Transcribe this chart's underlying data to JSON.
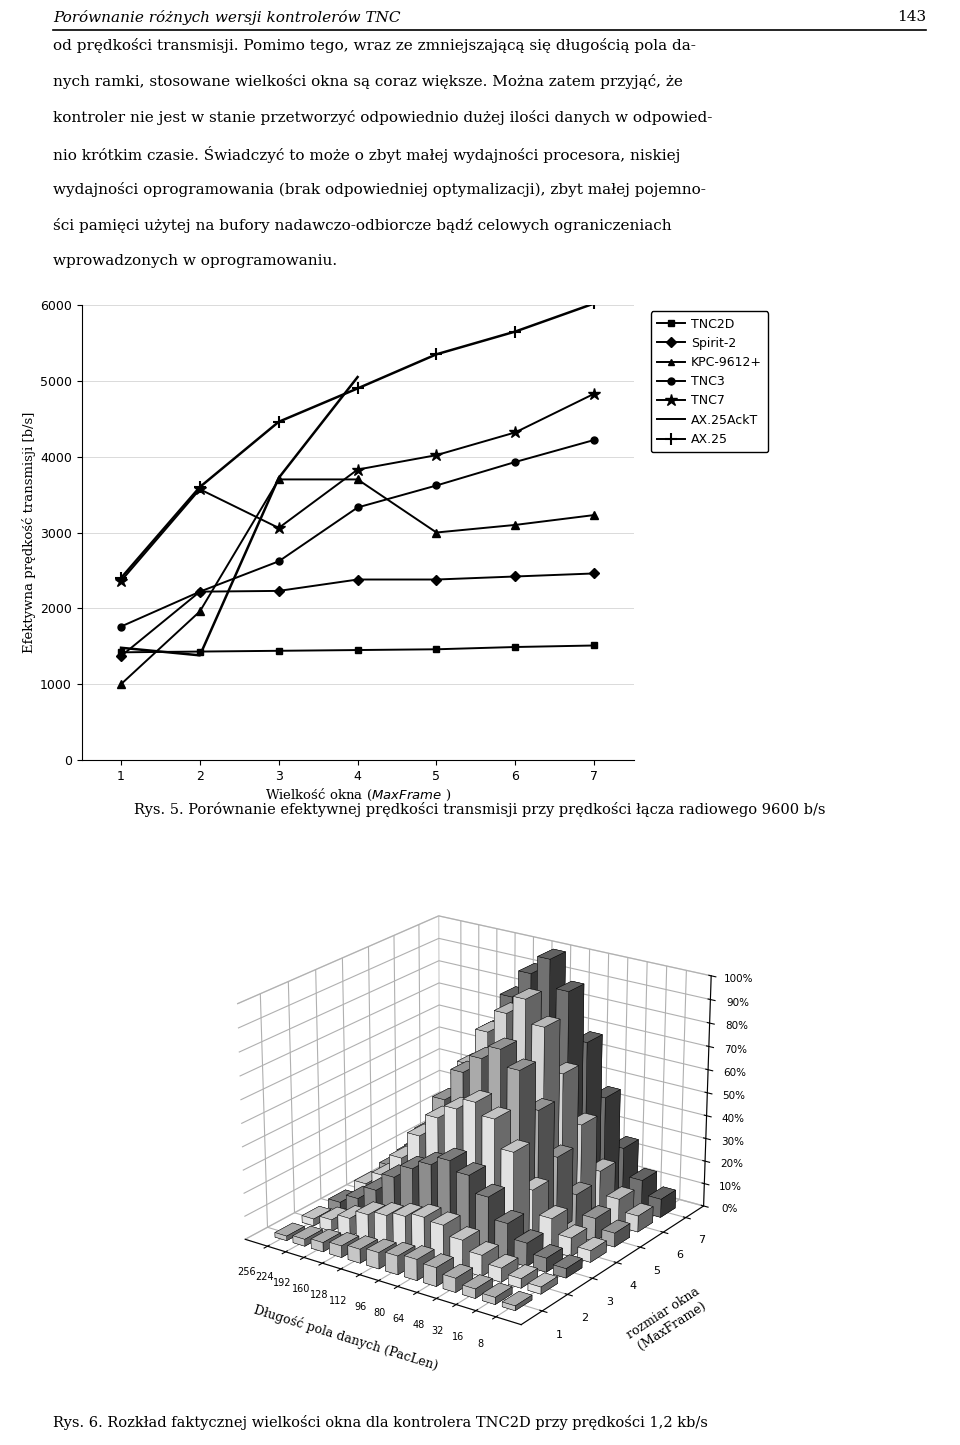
{
  "header_title": "Porównanie różnych wersji kontrolerów TNC",
  "header_page": "143",
  "paragraphs": [
    "od prędkości transmisji. Pomimo tego, wraz ze zmniejszającą się długością pola da-",
    "nych ramki, stosowane wielkości okna są coraz większe. Można zatem przyjąć, że",
    "kontroler nie jest w stanie przetworzyć odpowiednio dużej ilości danych w odpowied-",
    "nio krótkim czasie. Świadczyć to może o zbyt małej wydajności procesora, niskiej",
    "wydajności oprogramowania (brak odpowiedniej optymalizacji), zbyt małej pojemno-",
    "ści pamięci użytej na bufory nadawczo-odbiorcze bądź celowych ograniczeniach",
    "wprowadzonych w oprogramowaniu."
  ],
  "line_chart": {
    "x": [
      1,
      2,
      3,
      4,
      5,
      6,
      7
    ],
    "series": {
      "TNC2D": [
        1420,
        1430,
        1440,
        1450,
        1460,
        1490,
        1510
      ],
      "Spirit-2": [
        1370,
        2220,
        2230,
        2380,
        2380,
        2420,
        2460
      ],
      "KPC-9612+": [
        1000,
        1960,
        3700,
        3700,
        3000,
        3100,
        3230
      ],
      "TNC3": [
        1760,
        2220,
        2620,
        3330,
        3620,
        3930,
        4220
      ],
      "TNC7": [
        2360,
        3570,
        3060,
        3830,
        4020,
        4320,
        4830
      ],
      "AX.25AckT": [
        1480,
        1380,
        3720,
        5050,
        null,
        null,
        null
      ],
      "AX.25": [
        2400,
        3600,
        4460,
        4900,
        5350,
        5650,
        6020
      ]
    },
    "ylabel": "Efektywna prędkość transmisji [b/s]",
    "xlabel_plain": "Wielkość okna (",
    "xlabel_italic": "MaxFrame",
    "xlabel_end": " )",
    "ylim": [
      0,
      6000
    ],
    "yticks": [
      0,
      1000,
      2000,
      3000,
      4000,
      5000,
      6000
    ],
    "xticks": [
      1,
      2,
      3,
      4,
      5,
      6,
      7
    ],
    "caption": "Rys. 5. Porównanie efektywnej prędkości transmisji przy prędkości łącza radiowego 9600 b/s"
  },
  "bar3d_chart": {
    "xlabel": "Długość pola danych (PacLen)",
    "ylabel_line1": "rozmiar okna",
    "ylabel_line2": "(MaxFrame)",
    "x_labels": [
      "256",
      "224",
      "192",
      "160",
      "128",
      "112",
      "96",
      "80",
      "64",
      "48",
      "32",
      "16",
      "8"
    ],
    "y_labels": [
      "1",
      "2",
      "3",
      "4",
      "5",
      "6",
      "7"
    ],
    "zticks": [
      0,
      10,
      20,
      30,
      40,
      50,
      60,
      70,
      80,
      90,
      100
    ],
    "zlabels": [
      "0%",
      "10%",
      "20%",
      "30%",
      "40%",
      "50%",
      "60%",
      "70%",
      "80%",
      "90%",
      "100%"
    ],
    "caption": "Rys. 6. Rozkład faktycznej wielkości okna dla kontrolera TNC2D przy prędkości 1,2 kb/s",
    "data": [
      [
        2,
        3,
        4,
        5,
        6,
        7,
        8,
        9,
        8,
        6,
        4,
        3,
        2
      ],
      [
        3,
        5,
        8,
        12,
        14,
        16,
        18,
        17,
        13,
        9,
        6,
        4,
        3
      ],
      [
        4,
        8,
        14,
        22,
        28,
        32,
        36,
        32,
        25,
        16,
        10,
        6,
        4
      ],
      [
        6,
        12,
        22,
        34,
        44,
        50,
        55,
        50,
        38,
        24,
        14,
        8,
        5
      ],
      [
        8,
        16,
        28,
        44,
        58,
        66,
        72,
        65,
        50,
        32,
        18,
        10,
        6
      ],
      [
        10,
        20,
        36,
        54,
        70,
        80,
        88,
        78,
        60,
        40,
        22,
        12,
        7
      ],
      [
        12,
        24,
        42,
        64,
        80,
        92,
        100,
        88,
        68,
        46,
        26,
        14,
        8
      ]
    ]
  }
}
